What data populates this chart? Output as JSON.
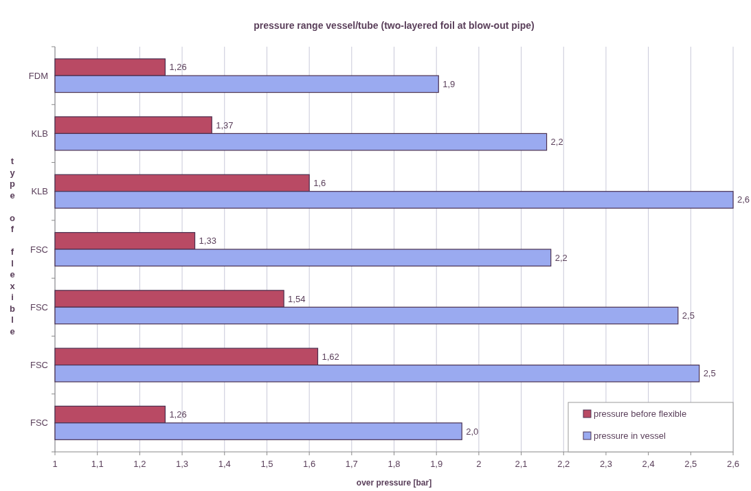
{
  "chart_data": {
    "type": "bar",
    "orientation": "horizontal",
    "title": "pressure range vessel/tube (two-layered foil at blow-out pipe)",
    "xlabel": "over pressure [bar]",
    "ylabel": "type of flexible",
    "categories": [
      "FDM",
      "KLB",
      "KLB",
      "FSC",
      "FSC",
      "FSC",
      "FSC"
    ],
    "series": [
      {
        "name": "pressure before flexible",
        "color": "#b94a64",
        "values": [
          1.26,
          1.37,
          1.6,
          1.33,
          1.54,
          1.62,
          1.26
        ],
        "value_labels": [
          "1,26",
          "1,37",
          "1,6",
          "1,33",
          "1,54",
          "1,62",
          "1,26"
        ]
      },
      {
        "name": "pressure in vessel",
        "color": "#9aaaf0",
        "values": [
          1.905,
          2.16,
          2.6,
          2.17,
          2.47,
          2.52,
          1.96
        ],
        "value_labels": [
          "1,9",
          "2,2",
          "2,6",
          "2,2",
          "2,5",
          "2,5",
          "2,0"
        ]
      }
    ],
    "xlim": [
      1,
      2.6
    ],
    "xticks": [
      1,
      {
        "value": 1.1,
        "label": "1,1"
      },
      {
        "value": 1.2,
        "label": "1,2"
      },
      {
        "value": 1.3,
        "label": "1,3"
      },
      {
        "value": 1.4,
        "label": "1,4"
      },
      {
        "value": 1.5,
        "label": "1,5"
      },
      {
        "value": 1.6,
        "label": "1,6"
      },
      {
        "value": 1.7,
        "label": "1,7"
      },
      {
        "value": 1.8,
        "label": "1,8"
      },
      {
        "value": 1.9,
        "label": "1,9"
      },
      2,
      {
        "value": 2.1,
        "label": "2,1"
      },
      {
        "value": 2.2,
        "label": "2,2"
      },
      {
        "value": 2.3,
        "label": "2,3"
      },
      {
        "value": 2.4,
        "label": "2,4"
      },
      {
        "value": 2.5,
        "label": "2,5"
      },
      {
        "value": 2.6,
        "label": "2,6"
      }
    ],
    "grid": "x",
    "legend": "bottom right"
  }
}
